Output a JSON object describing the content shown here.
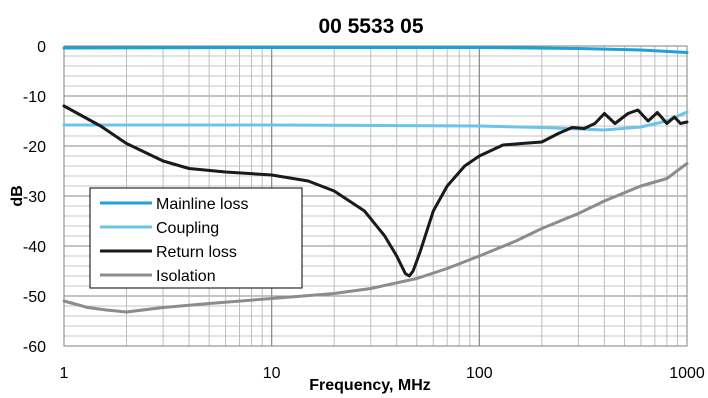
{
  "chart_data": {
    "type": "line",
    "title": "00 5533 05",
    "xlabel": "Frequency, MHz",
    "ylabel": "dB",
    "x_scale": "log",
    "xlim": [
      1,
      1000
    ],
    "ylim": [
      -60,
      0
    ],
    "x_ticks": [
      1,
      10,
      100,
      1000
    ],
    "x_tick_labels": [
      "1",
      "10",
      "100",
      "1000"
    ],
    "y_ticks": [
      0,
      -10,
      -20,
      -30,
      -40,
      -50,
      -60
    ],
    "y_tick_labels": [
      "0",
      "-10",
      "-20",
      "-30",
      "-40",
      "-50",
      "-60"
    ],
    "grid": true,
    "legend_position": "left-center",
    "series": [
      {
        "name": "Mainline loss",
        "color": "#1ba3d9",
        "points": [
          [
            1,
            -0.4
          ],
          [
            10,
            -0.3
          ],
          [
            100,
            -0.3
          ],
          [
            300,
            -0.5
          ],
          [
            600,
            -0.8
          ],
          [
            1000,
            -1.3
          ]
        ]
      },
      {
        "name": "Coupling",
        "color": "#6ac3ea",
        "points": [
          [
            1,
            -15.8
          ],
          [
            10,
            -15.8
          ],
          [
            100,
            -16.0
          ],
          [
            200,
            -16.3
          ],
          [
            400,
            -16.8
          ],
          [
            600,
            -16.2
          ],
          [
            800,
            -15.0
          ],
          [
            1000,
            -13.2
          ]
        ]
      },
      {
        "name": "Return loss",
        "color": "#1a1a1a",
        "points": [
          [
            1,
            -12
          ],
          [
            1.5,
            -16
          ],
          [
            2,
            -19.5
          ],
          [
            3,
            -23
          ],
          [
            4,
            -24.5
          ],
          [
            6,
            -25.2
          ],
          [
            10,
            -25.8
          ],
          [
            15,
            -27
          ],
          [
            20,
            -29
          ],
          [
            28,
            -33
          ],
          [
            35,
            -38
          ],
          [
            40,
            -42
          ],
          [
            44,
            -45.5
          ],
          [
            46,
            -46
          ],
          [
            48,
            -45
          ],
          [
            52,
            -41
          ],
          [
            60,
            -33
          ],
          [
            70,
            -28
          ],
          [
            85,
            -24
          ],
          [
            100,
            -22
          ],
          [
            130,
            -19.8
          ],
          [
            160,
            -19.5
          ],
          [
            200,
            -19.2
          ],
          [
            240,
            -17.5
          ],
          [
            280,
            -16.3
          ],
          [
            320,
            -16.5
          ],
          [
            360,
            -15.5
          ],
          [
            400,
            -13.5
          ],
          [
            450,
            -15.5
          ],
          [
            520,
            -13.5
          ],
          [
            580,
            -12.8
          ],
          [
            650,
            -15
          ],
          [
            720,
            -13.3
          ],
          [
            800,
            -15.5
          ],
          [
            870,
            -14.2
          ],
          [
            930,
            -15.5
          ],
          [
            1000,
            -15.2
          ]
        ]
      },
      {
        "name": "Isolation",
        "color": "#8c8c8c",
        "points": [
          [
            1,
            -51
          ],
          [
            1.3,
            -52.3
          ],
          [
            1.6,
            -52.8
          ],
          [
            2,
            -53.2
          ],
          [
            3,
            -52.3
          ],
          [
            5,
            -51.5
          ],
          [
            10,
            -50.5
          ],
          [
            20,
            -49.5
          ],
          [
            30,
            -48.5
          ],
          [
            50,
            -46.5
          ],
          [
            70,
            -44.5
          ],
          [
            100,
            -42
          ],
          [
            150,
            -39
          ],
          [
            200,
            -36.5
          ],
          [
            300,
            -33.5
          ],
          [
            400,
            -31
          ],
          [
            600,
            -28
          ],
          [
            800,
            -26.5
          ],
          [
            1000,
            -23.5
          ]
        ]
      }
    ]
  }
}
